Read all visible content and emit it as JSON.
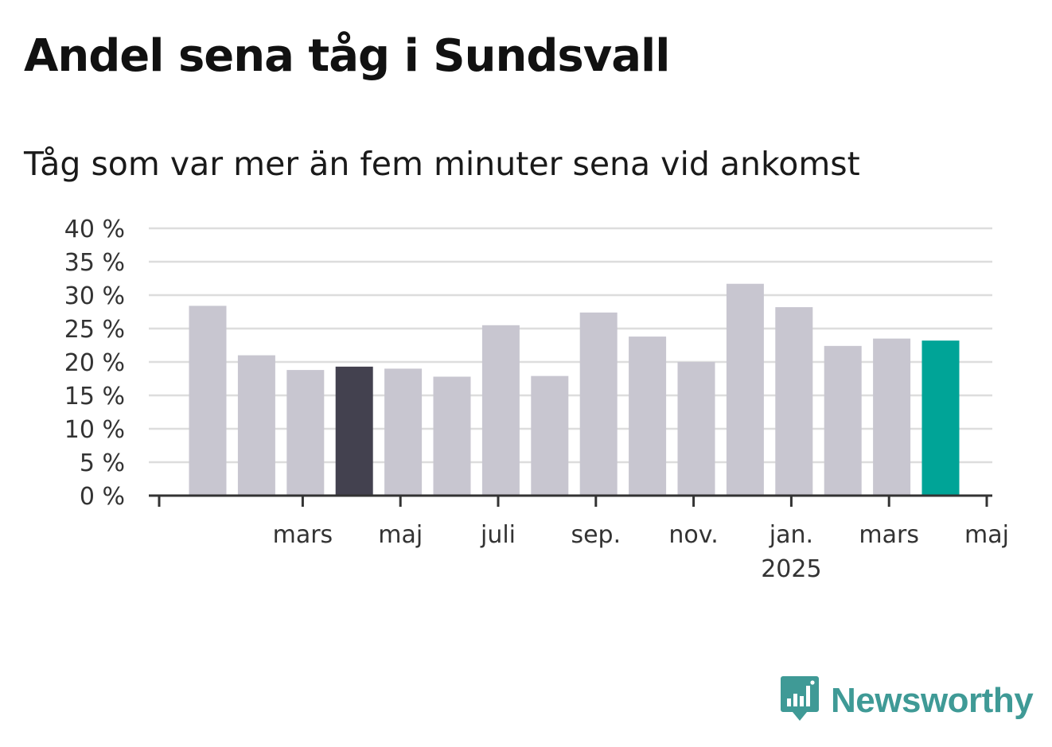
{
  "title": "Andel sena tåg i Sundsvall",
  "subtitle": "Tåg som var mer än fem minuter sena vid ankomst",
  "brand": {
    "name": "Newsworthy",
    "color": "#3f9a96",
    "icon": "newsworthy-chart-bubble-icon"
  },
  "colors": {
    "bar_default": "#c8c6d0",
    "bar_highlight_dark": "#43414f",
    "bar_highlight_latest": "#00a497",
    "grid": "#dddddd",
    "axis": "#333333"
  },
  "chart_data": {
    "type": "bar",
    "title": "Andel sena tåg i Sundsvall",
    "subtitle": "Tåg som var mer än fem minuter sena vid ankomst",
    "xlabel": "",
    "ylabel": "",
    "ylim": [
      0,
      40
    ],
    "y_ticks": [
      0,
      5,
      10,
      15,
      20,
      25,
      30,
      35,
      40
    ],
    "y_tick_labels": [
      "0 %",
      "5 %",
      "10 %",
      "15 %",
      "20 %",
      "25 %",
      "30 %",
      "35 %",
      "40 %"
    ],
    "categories": [
      "2024-02",
      "2024-03",
      "2024-04",
      "2024-05",
      "2024-06",
      "2024-07",
      "2024-08",
      "2024-09",
      "2024-10",
      "2024-11",
      "2024-12",
      "2025-01",
      "2025-02",
      "2025-03",
      "2025-04",
      "2025-05"
    ],
    "values": [
      28.4,
      21.0,
      18.8,
      19.3,
      19.0,
      17.8,
      25.5,
      17.9,
      27.4,
      23.8,
      20.0,
      31.7,
      28.2,
      22.4,
      23.5,
      23.2
    ],
    "highlight": {
      "dark": [
        "2024-05"
      ],
      "latest": [
        "2025-05"
      ]
    },
    "x_tick_labels": [
      {
        "category": "2024-03",
        "label": "mars",
        "sub": ""
      },
      {
        "category": "2024-05",
        "label": "maj",
        "sub": ""
      },
      {
        "category": "2024-07",
        "label": "juli",
        "sub": ""
      },
      {
        "category": "2024-09",
        "label": "sep.",
        "sub": ""
      },
      {
        "category": "2024-11",
        "label": "nov.",
        "sub": ""
      },
      {
        "category": "2025-01",
        "label": "jan.",
        "sub": "2025"
      },
      {
        "category": "2025-03",
        "label": "mars",
        "sub": ""
      },
      {
        "category": "2025-05",
        "label": "maj",
        "sub": ""
      }
    ],
    "grid": true,
    "legend": "none"
  }
}
